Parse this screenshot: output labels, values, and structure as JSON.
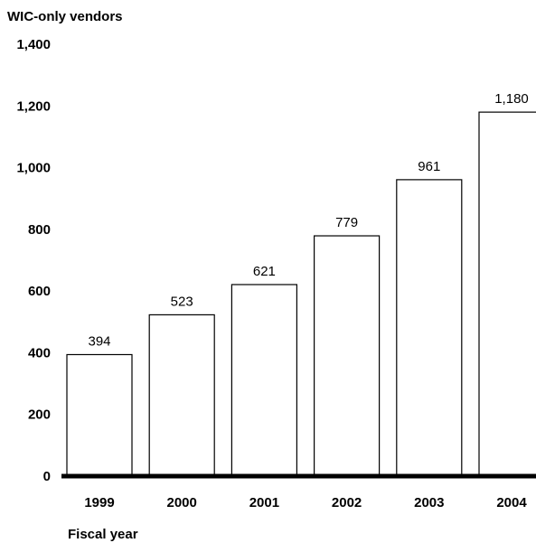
{
  "chart_data": {
    "type": "bar",
    "ylabel": "WIC-only vendors",
    "xlabel": "Fiscal year",
    "categories": [
      "1999",
      "2000",
      "2001",
      "2002",
      "2003",
      "2004"
    ],
    "values": [
      394,
      523,
      621,
      779,
      961,
      1180
    ],
    "data_labels": [
      "394",
      "523",
      "621",
      "779",
      "961",
      "1,180"
    ],
    "yticks": [
      0,
      200,
      400,
      600,
      800,
      1000,
      1200,
      1400
    ],
    "ytick_labels": [
      "0",
      "200",
      "400",
      "600",
      "800",
      "1,000",
      "1,200",
      "1,400"
    ],
    "ylim": [
      0,
      1400
    ],
    "grid": false,
    "colors": {
      "bar_fill": "#ffffff",
      "bar_stroke": "#000000",
      "axis": "#000000"
    }
  }
}
